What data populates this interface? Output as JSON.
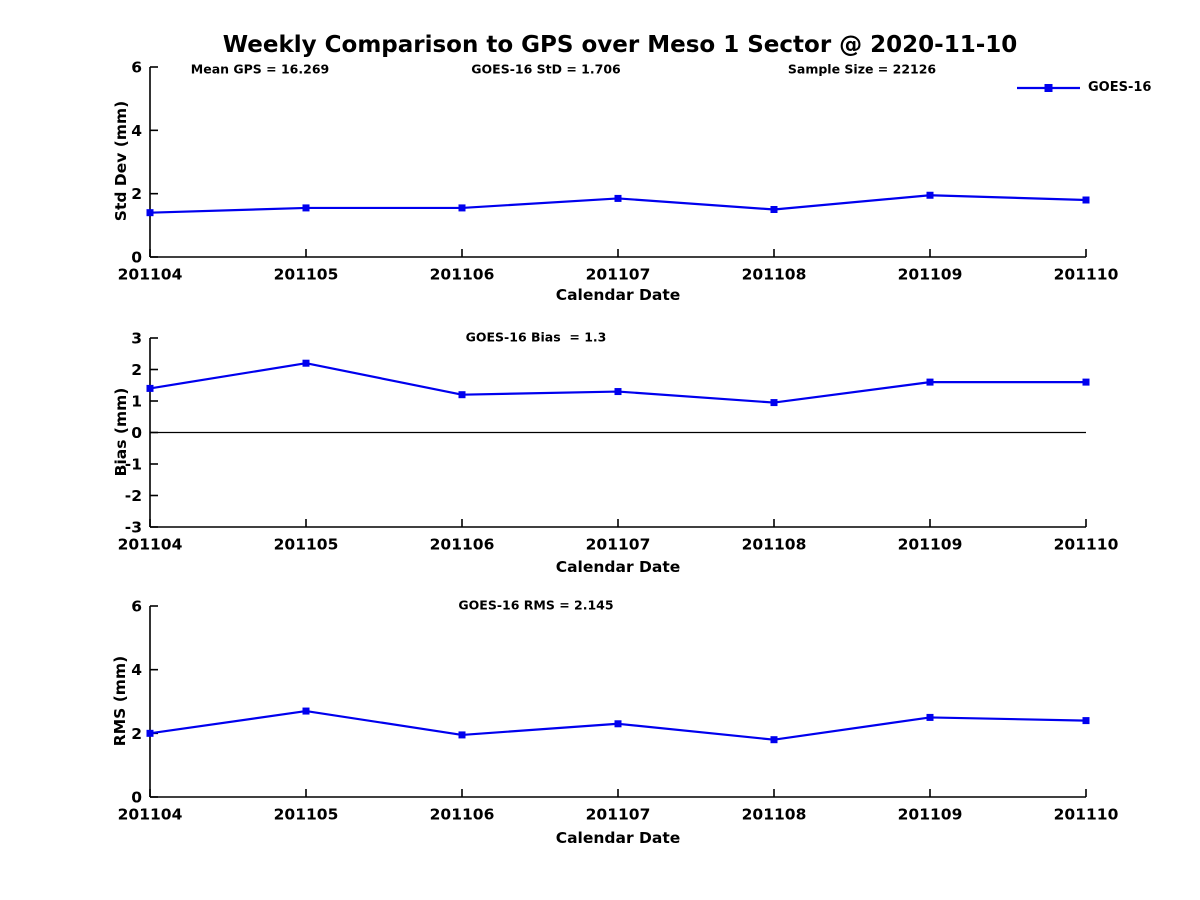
{
  "title": "Weekly Comparison to GPS over Meso 1 Sector @ 2020-11-10",
  "legend": {
    "label": "GOES-16",
    "marker": "filled-square",
    "color": "#0000EE"
  },
  "colors": {
    "line": "#0000EE",
    "axis": "#000000",
    "text": "#000000",
    "zero_line": "#000000",
    "background": "#FFFFFF"
  },
  "chart_data": [
    {
      "type": "line",
      "ylabel": "Std Dev (mm)",
      "xlabel": "Calendar Date",
      "ylim": [
        0,
        6
      ],
      "yticks": [
        0,
        2,
        4,
        6
      ],
      "grid": false,
      "legend_position": "top-right",
      "x_categories": [
        "201104",
        "201105",
        "201106",
        "201107",
        "201108",
        "201109",
        "201110"
      ],
      "series": [
        {
          "name": "GOES-16",
          "marker": "square",
          "values": [
            1.4,
            1.55,
            1.55,
            1.85,
            1.5,
            1.95,
            1.8
          ]
        }
      ],
      "annotations": [
        "Mean GPS = 16.269",
        "GOES-16 StD = 1.706",
        "Sample Size = 22126"
      ]
    },
    {
      "type": "line",
      "ylabel": "Bias (mm)",
      "xlabel": "Calendar Date",
      "ylim": [
        -3,
        3
      ],
      "yticks": [
        -3,
        -2,
        -1,
        0,
        1,
        2,
        3
      ],
      "zero_line": true,
      "grid": false,
      "x_categories": [
        "201104",
        "201105",
        "201106",
        "201107",
        "201108",
        "201109",
        "201110"
      ],
      "series": [
        {
          "name": "GOES-16",
          "marker": "square",
          "values": [
            1.4,
            2.2,
            1.2,
            1.3,
            0.95,
            1.6,
            1.6
          ]
        }
      ],
      "annotations": [
        "GOES-16 Bias  = 1.3"
      ]
    },
    {
      "type": "line",
      "ylabel": "RMS (mm)",
      "xlabel": "Calendar Date",
      "ylim": [
        0,
        6
      ],
      "yticks": [
        0,
        2,
        4,
        6
      ],
      "grid": false,
      "x_categories": [
        "201104",
        "201105",
        "201106",
        "201107",
        "201108",
        "201109",
        "201110"
      ],
      "series": [
        {
          "name": "GOES-16",
          "marker": "square",
          "values": [
            2.0,
            2.7,
            1.95,
            2.3,
            1.8,
            2.5,
            2.4
          ]
        }
      ],
      "annotations": [
        "GOES-16 RMS = 2.145"
      ]
    }
  ]
}
